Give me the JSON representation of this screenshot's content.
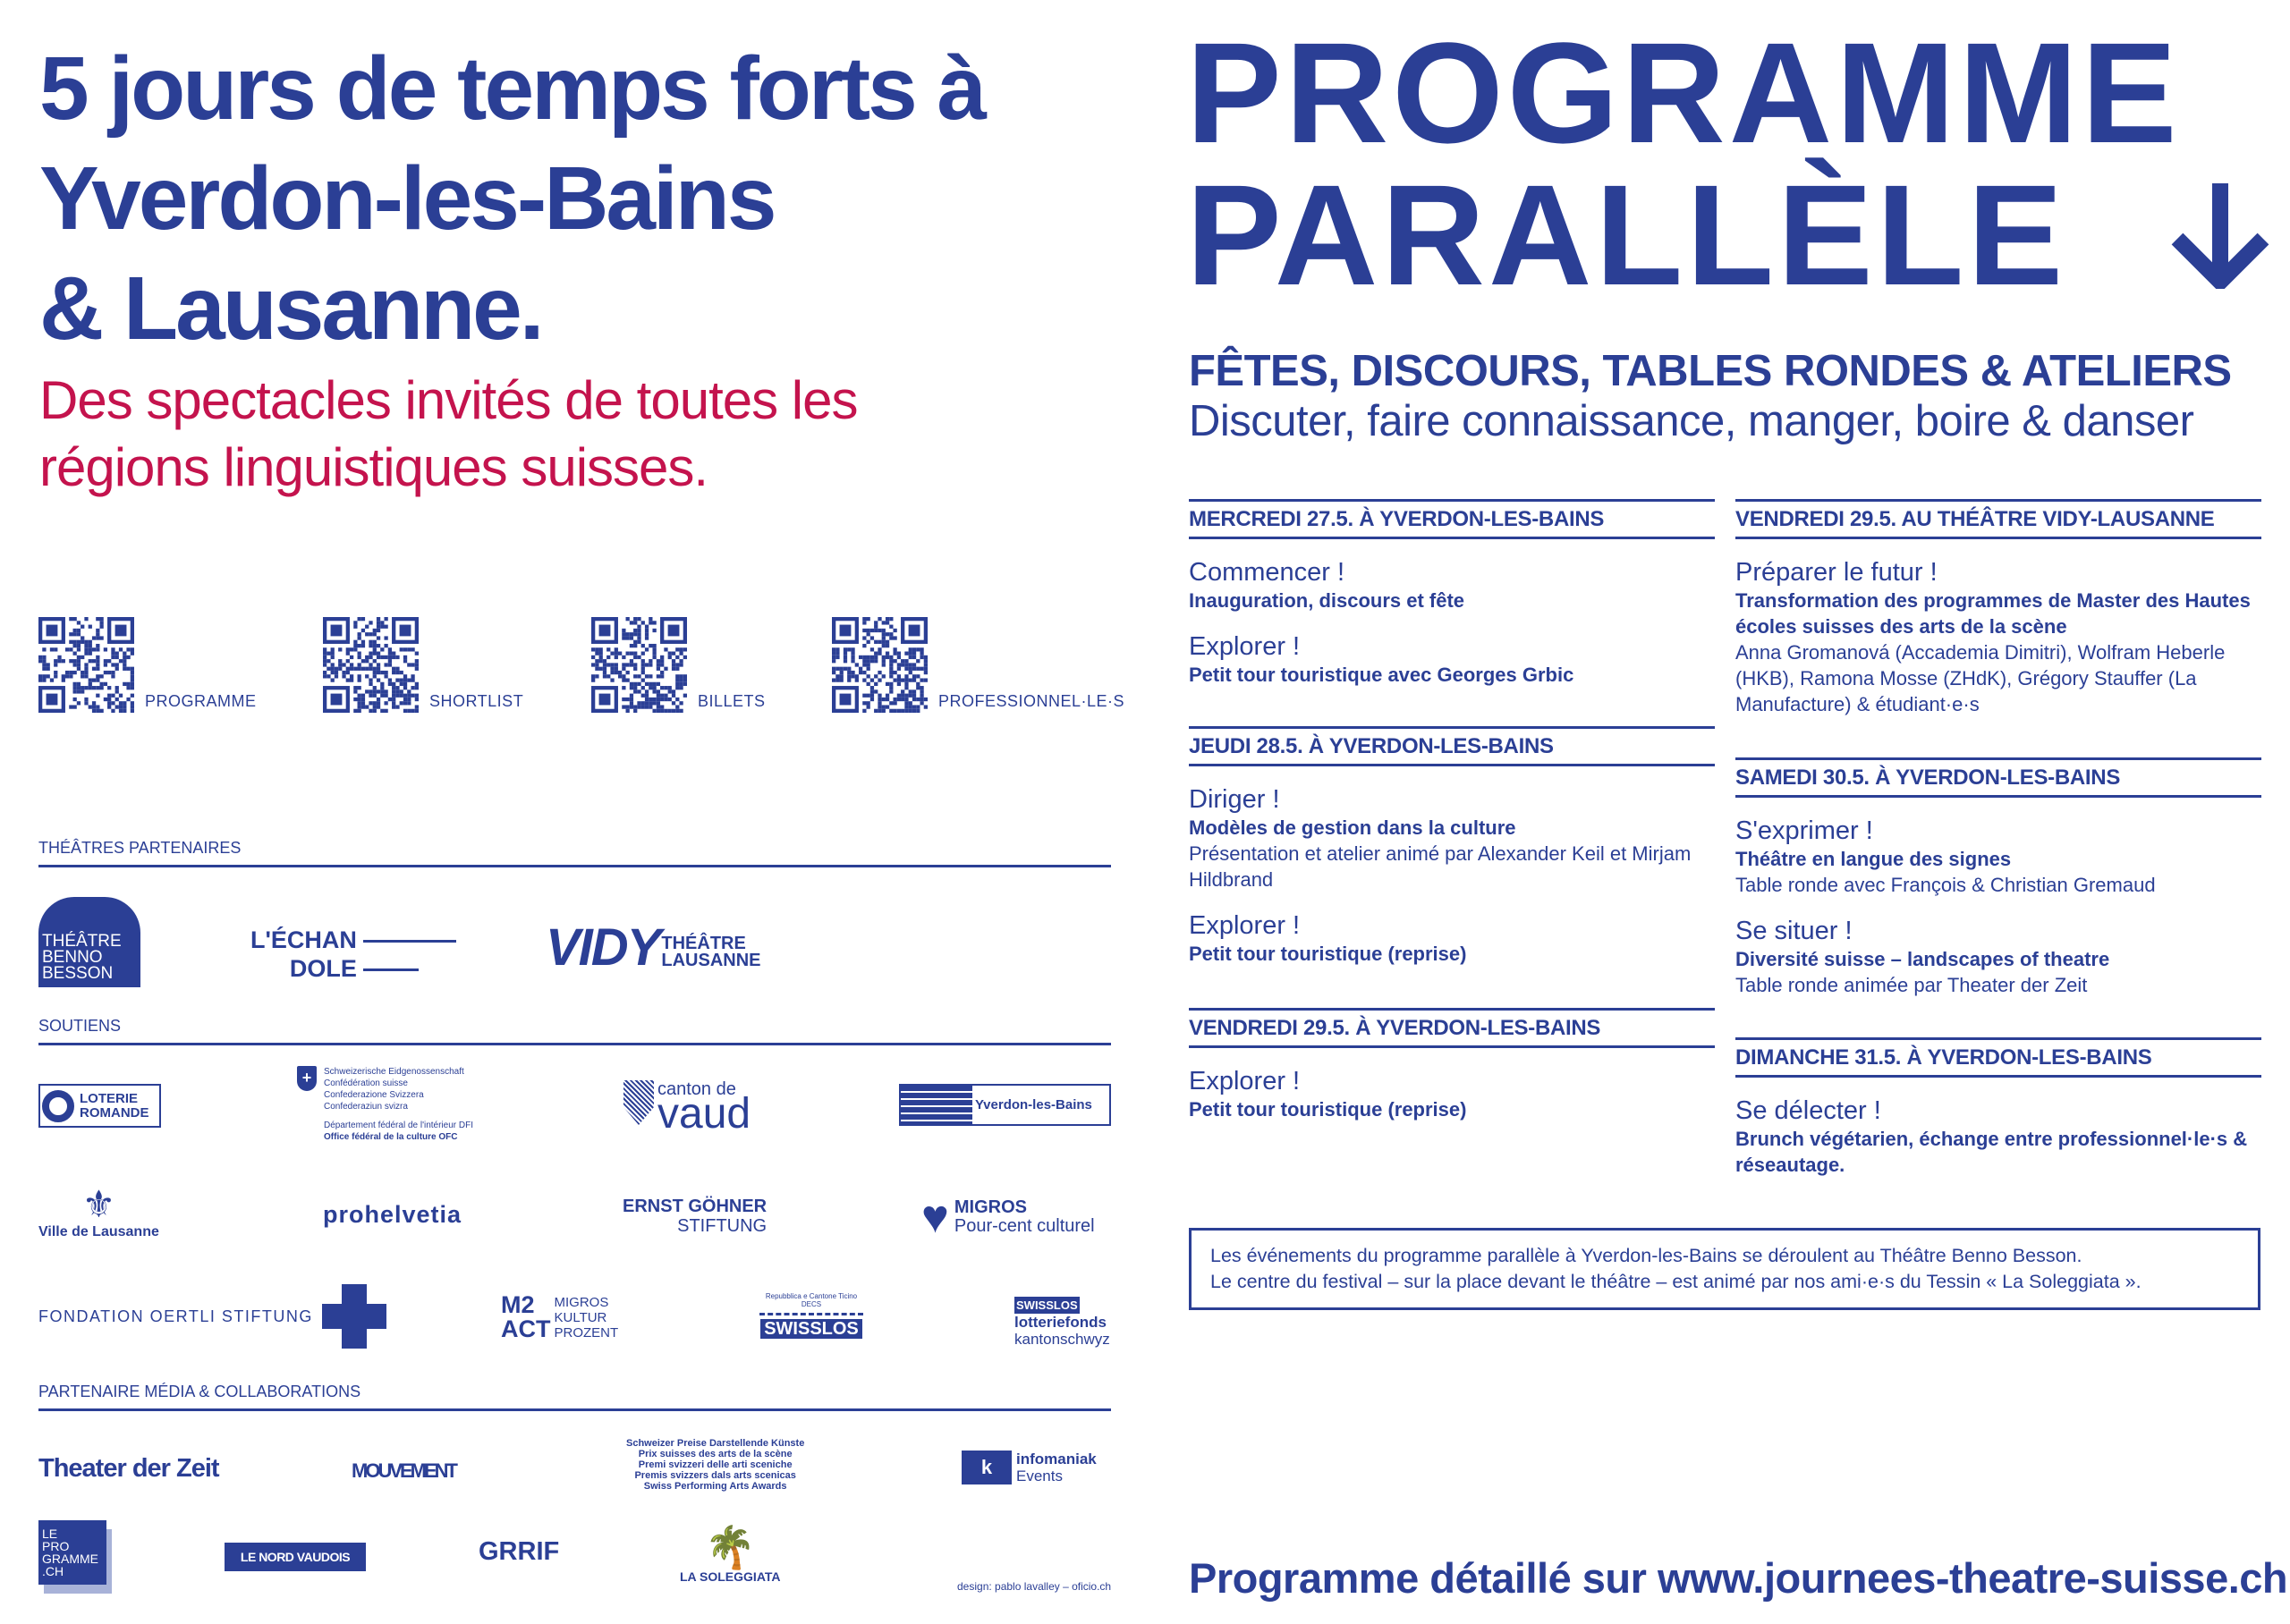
{
  "left": {
    "headline": [
      "5 jours de temps forts à",
      "Yverdon-les-Bains",
      "& Lausanne."
    ],
    "subheadline": [
      "Des spectacles invités de toutes les",
      "régions linguistiques suisses."
    ],
    "qr_codes": [
      {
        "label": "PROGRAMME"
      },
      {
        "label": "SHORTLIST"
      },
      {
        "label": "BILLETS"
      },
      {
        "label": "PROFESSIONNEL·LE·S"
      }
    ],
    "sections": {
      "theatres": "THÉÂTRES PARTENAIRES",
      "soutiens": "SOUTIENS",
      "media": "PARTENAIRE MÉDIA & COLLABORATIONS"
    },
    "logos": {
      "benno": [
        "THÉÂTRE",
        "BENNO",
        "BESSON"
      ],
      "echandole": [
        "L'ÉCHAN",
        "DOLE"
      ],
      "vidy": {
        "mark": "VIDY",
        "text": [
          "THÉÂTRE",
          "LAUSANNE"
        ]
      },
      "loterie": [
        "LOTERIE",
        "ROMANDE"
      ],
      "confed": [
        "Schweizerische Eidgenossenschaft",
        "Confédération suisse",
        "Confederazione Svizzera",
        "Confederaziun svizra",
        "Département fédéral de l'intérieur DFI",
        "Office fédéral de la culture OFC"
      ],
      "vaud": [
        "canton de",
        "vaud"
      ],
      "yverdon": "Yverdon-les-Bains",
      "lausanne": "Ville de Lausanne",
      "prohelvetia": "prohelvetia",
      "goehner": [
        "ERNST GÖHNER",
        "STIFTUNG"
      ],
      "migros": [
        "MIGROS",
        "Pour-cent culturel"
      ],
      "oertli": "FONDATION OERTLI STIFTUNG",
      "m2act": {
        "mark": [
          "M2",
          "ACT"
        ],
        "text": [
          "MIGROS",
          "KULTUR",
          "PROZENT"
        ]
      },
      "ticino": [
        "Repubblica e Cantone Ticino",
        "DECS",
        "SWISSLOS"
      ],
      "schwyz": [
        "SWISSLOS",
        "lotteriefonds",
        "kantonschwyz"
      ],
      "tdz": "Theater der Zeit",
      "mouvement": "MOUVEMENT",
      "prix": [
        "Schweizer Preise Darstellende Künste",
        "Prix suisses des arts de la scène",
        "Premi svizzeri delle arti sceniche",
        "Premis svizzers dals arts scenicas",
        "Swiss Performing Arts Awards"
      ],
      "infomaniak": [
        "k",
        "infomaniak",
        "Events"
      ],
      "leprogramme": [
        "LE",
        "PRO",
        "GRAMME",
        ".CH"
      ],
      "nordvaudois": "LE NORD VAUDOIS",
      "grrif": "GRRIF",
      "soleggiata": "LA SOLEGGIATA"
    },
    "credit": "design: pablo lavalley – oficio.ch"
  },
  "right": {
    "title": [
      "PROGRAMME",
      "PARALLÈLE"
    ],
    "arrow_icon": "arrow-down",
    "tagline_bold": "FÊTES, DISCOURS, TABLES RONDES & ATELIERS",
    "tagline": "Discuter, faire connaissance, manger, boire & danser",
    "days": [
      {
        "header": "MERCREDI 27.5. À YVERDON-LES-BAINS",
        "items": [
          {
            "title": "Commencer !",
            "sub": "Inauguration, discours et fête",
            "desc": ""
          },
          {
            "title": "Explorer !",
            "sub": "Petit tour touristique avec Georges Grbic",
            "desc": ""
          }
        ]
      },
      {
        "header": "JEUDI 28.5. À YVERDON-LES-BAINS",
        "items": [
          {
            "title": "Diriger !",
            "sub": "Modèles de gestion dans la culture",
            "desc": "Présentation et atelier animé par Alexander Keil et Mirjam Hildbrand"
          },
          {
            "title": "Explorer !",
            "sub": "Petit tour touristique (reprise)",
            "desc": ""
          }
        ]
      },
      {
        "header": "VENDREDI 29.5. À YVERDON-LES-BAINS",
        "items": [
          {
            "title": "Explorer !",
            "sub": "Petit tour touristique (reprise)",
            "desc": ""
          }
        ]
      },
      {
        "header": "VENDREDI 29.5. AU THÉÂTRE VIDY-LAUSANNE",
        "items": [
          {
            "title": "Préparer le futur !",
            "sub": "Transformation des programmes de Master des Hautes écoles suisses des arts de la scène",
            "desc": "Anna Gromanová (Accademia Dimitri), Wolfram Heberle (HKB), Ramona Mosse (ZHdK), Grégory Stauffer (La Manufacture) & étudiant·e·s"
          }
        ]
      },
      {
        "header": "SAMEDI 30.5. À YVERDON-LES-BAINS",
        "items": [
          {
            "title": "S'exprimer !",
            "sub": "Théâtre en langue des signes",
            "desc": "Table ronde avec François & Christian Gremaud"
          },
          {
            "title": "Se situer !",
            "sub": "Diversité suisse – landscapes of theatre",
            "desc": "Table ronde animée par Theater der Zeit"
          }
        ]
      },
      {
        "header": "DIMANCHE 31.5. À YVERDON-LES-BAINS",
        "items": [
          {
            "title": "Se délecter !",
            "sub": "Brunch végétarien, échange entre professionnel·le·s & réseautage.",
            "desc": ""
          }
        ]
      }
    ],
    "notice": [
      "Les événements du programme parallèle à Yverdon-les-Bains se déroulent au Théâtre Benno Besson.",
      "Le centre du festival – sur la place devant le théâtre – est animé par nos ami·e·s du Tessin « La Soleggiata »."
    ],
    "footer": "Programme détaillé sur www.journees-theatre-suisse.ch"
  },
  "colors": {
    "blue": "#2b3f95",
    "magenta": "#c4134d"
  }
}
